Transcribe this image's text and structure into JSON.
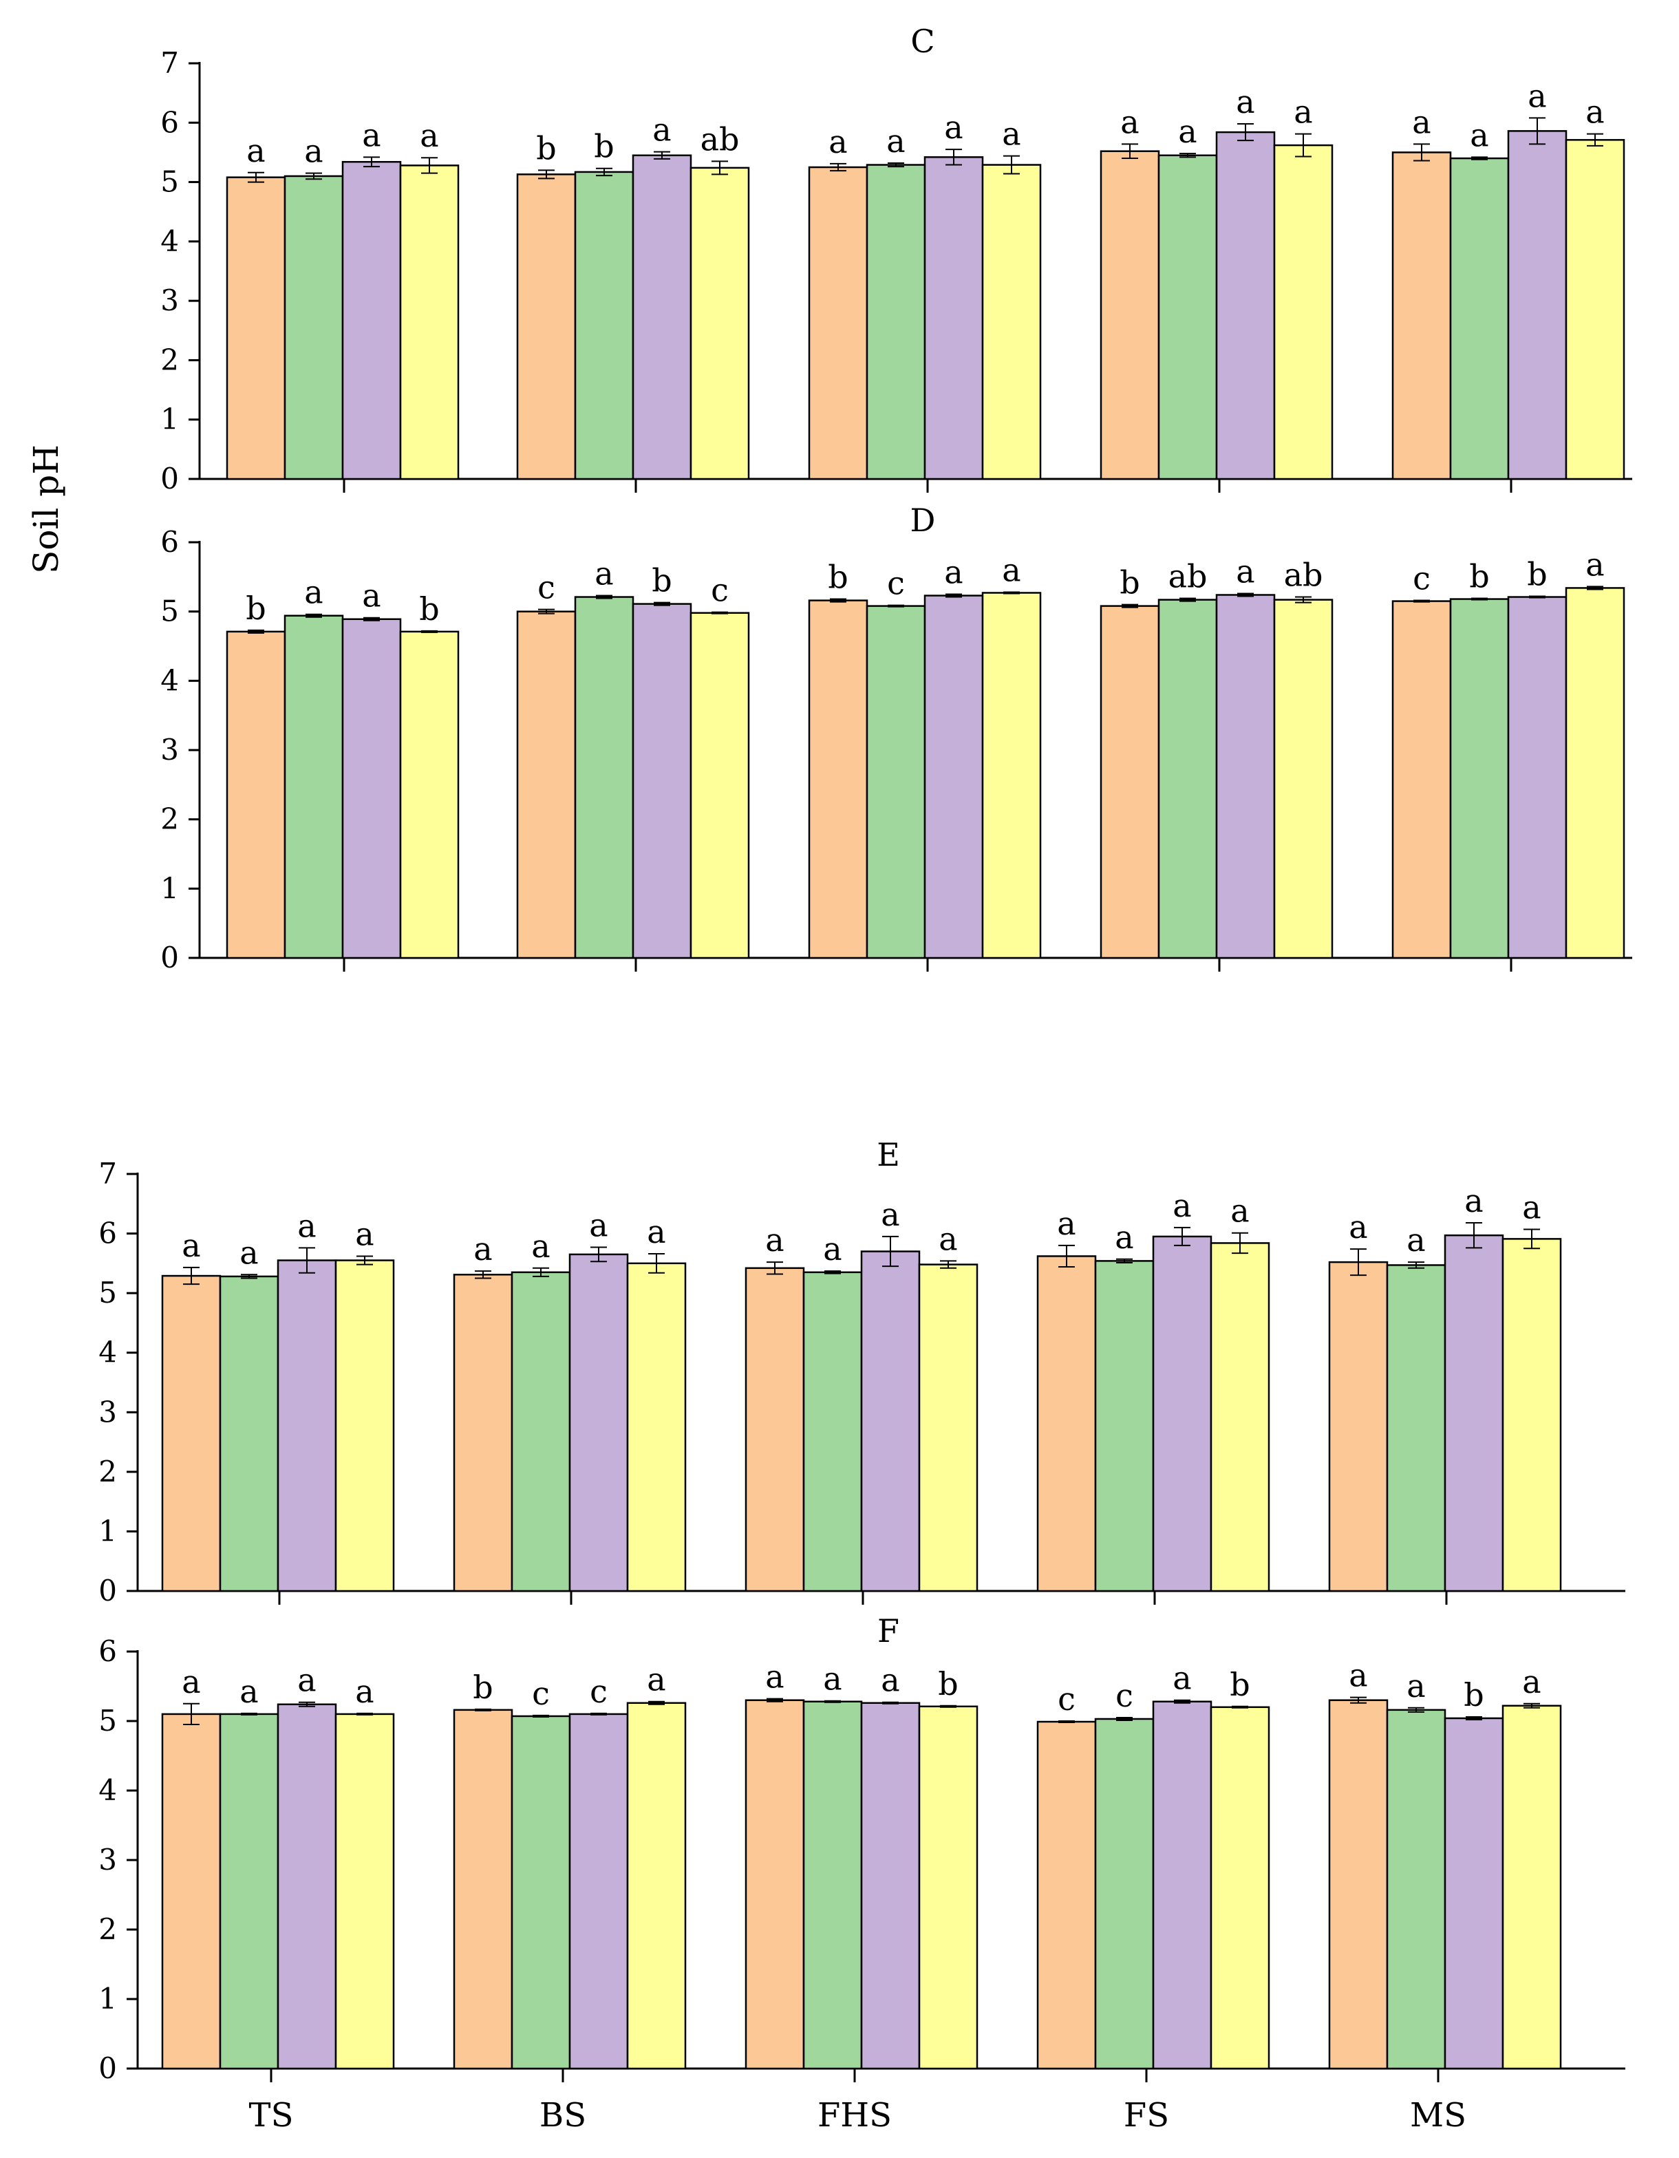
{
  "figure": {
    "y_axis_label": "Soil pH",
    "colors": [
      "#FCC896",
      "#9FD79C",
      "#C4B0D8",
      "#FFFF99"
    ]
  },
  "chart_data": [
    {
      "type": "bar",
      "title": "C",
      "categories": [
        "TS",
        "BS",
        "FHS",
        "FS",
        "MS"
      ],
      "ylim": [
        0,
        7
      ],
      "yticks": [
        0,
        1,
        2,
        3,
        4,
        5,
        6,
        7
      ],
      "series": [
        {
          "values": [
            5.08,
            5.13,
            5.25,
            5.52,
            5.5
          ],
          "errors": [
            0.08,
            0.07,
            0.06,
            0.12,
            0.14
          ],
          "labels": [
            "a",
            "b",
            "a",
            "a",
            "a"
          ]
        },
        {
          "values": [
            5.1,
            5.17,
            5.29,
            5.45,
            5.4
          ],
          "errors": [
            0.05,
            0.06,
            0.03,
            0.03,
            0.02
          ],
          "labels": [
            "a",
            "b",
            "a",
            "a",
            "a"
          ]
        },
        {
          "values": [
            5.34,
            5.45,
            5.42,
            5.84,
            5.86
          ],
          "errors": [
            0.08,
            0.06,
            0.13,
            0.14,
            0.22
          ],
          "labels": [
            "a",
            "a",
            "a",
            "a",
            "a"
          ]
        },
        {
          "values": [
            5.28,
            5.24,
            5.29,
            5.62,
            5.71
          ],
          "errors": [
            0.13,
            0.11,
            0.15,
            0.19,
            0.1
          ],
          "labels": [
            "a",
            "ab",
            "a",
            "a",
            "a"
          ]
        }
      ]
    },
    {
      "type": "bar",
      "title": "D",
      "categories": [
        "TS",
        "BS",
        "FHS",
        "FS",
        "MS"
      ],
      "ylim": [
        0,
        6
      ],
      "yticks": [
        0,
        1,
        2,
        3,
        4,
        5,
        6
      ],
      "series": [
        {
          "values": [
            4.71,
            5.0,
            5.16,
            5.08,
            5.15
          ],
          "errors": [
            0.02,
            0.03,
            0.02,
            0.02,
            0.01
          ],
          "labels": [
            "b",
            "c",
            "b",
            "b",
            "c"
          ]
        },
        {
          "values": [
            4.94,
            5.21,
            5.08,
            5.17,
            5.18
          ],
          "errors": [
            0.02,
            0.02,
            0.01,
            0.02,
            0.01
          ],
          "labels": [
            "a",
            "a",
            "c",
            "ab",
            "b"
          ]
        },
        {
          "values": [
            4.89,
            5.11,
            5.23,
            5.24,
            5.21
          ],
          "errors": [
            0.02,
            0.02,
            0.02,
            0.02,
            0.01
          ],
          "labels": [
            "a",
            "b",
            "a",
            "a",
            "b"
          ]
        },
        {
          "values": [
            4.71,
            4.98,
            5.27,
            5.17,
            5.34
          ],
          "errors": [
            0.01,
            0.01,
            0.01,
            0.04,
            0.02
          ],
          "labels": [
            "b",
            "c",
            "a",
            "ab",
            "a"
          ]
        }
      ]
    },
    {
      "type": "bar",
      "title": "E",
      "categories": [
        "TS",
        "BS",
        "FHS",
        "FS",
        "MS"
      ],
      "ylim": [
        0,
        7
      ],
      "yticks": [
        0,
        1,
        2,
        3,
        4,
        5,
        6,
        7
      ],
      "series": [
        {
          "values": [
            5.29,
            5.31,
            5.42,
            5.62,
            5.52
          ],
          "errors": [
            0.14,
            0.06,
            0.1,
            0.18,
            0.22
          ],
          "labels": [
            "a",
            "a",
            "a",
            "a",
            "a"
          ]
        },
        {
          "values": [
            5.28,
            5.35,
            5.35,
            5.54,
            5.47
          ],
          "errors": [
            0.03,
            0.07,
            0.02,
            0.03,
            0.05
          ],
          "labels": [
            "a",
            "a",
            "a",
            "a",
            "a"
          ]
        },
        {
          "values": [
            5.55,
            5.65,
            5.7,
            5.95,
            5.97
          ],
          "errors": [
            0.21,
            0.12,
            0.25,
            0.15,
            0.21
          ],
          "labels": [
            "a",
            "a",
            "a",
            "a",
            "a"
          ]
        },
        {
          "values": [
            5.55,
            5.5,
            5.48,
            5.84,
            5.91
          ],
          "errors": [
            0.07,
            0.16,
            0.06,
            0.17,
            0.16
          ],
          "labels": [
            "a",
            "a",
            "a",
            "a",
            "a"
          ]
        }
      ]
    },
    {
      "type": "bar",
      "title": "F",
      "categories": [
        "TS",
        "BS",
        "FHS",
        "FS",
        "MS"
      ],
      "ylim": [
        0,
        6
      ],
      "yticks": [
        0,
        1,
        2,
        3,
        4,
        5,
        6
      ],
      "series": [
        {
          "values": [
            5.1,
            5.16,
            5.3,
            4.99,
            5.3
          ],
          "errors": [
            0.15,
            0.01,
            0.02,
            0.01,
            0.04
          ],
          "labels": [
            "a",
            "b",
            "a",
            "c",
            "a"
          ]
        },
        {
          "values": [
            5.1,
            5.07,
            5.28,
            5.03,
            5.16
          ],
          "errors": [
            0.01,
            0.01,
            0.01,
            0.02,
            0.03
          ],
          "labels": [
            "a",
            "c",
            "a",
            "c",
            "a"
          ]
        },
        {
          "values": [
            5.24,
            5.1,
            5.26,
            5.28,
            5.04
          ],
          "errors": [
            0.03,
            0.01,
            0.01,
            0.02,
            0.02
          ],
          "labels": [
            "a",
            "c",
            "a",
            "a",
            "b"
          ]
        },
        {
          "values": [
            5.1,
            5.26,
            5.21,
            5.2,
            5.22
          ],
          "errors": [
            0.01,
            0.02,
            0.01,
            0.01,
            0.03
          ],
          "labels": [
            "a",
            "a",
            "b",
            "b",
            "a"
          ]
        }
      ]
    }
  ]
}
